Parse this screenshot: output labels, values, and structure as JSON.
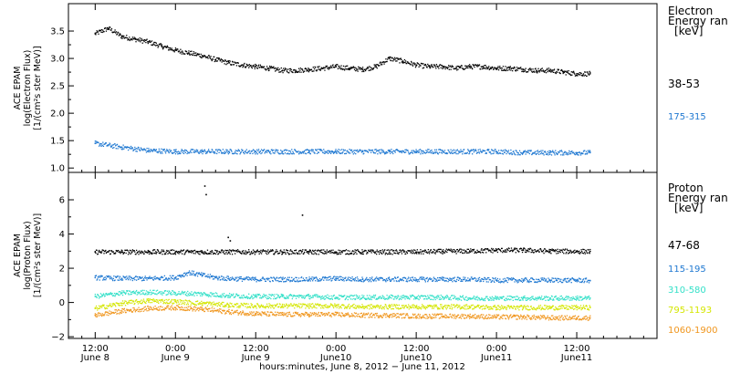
{
  "chart_data": [
    {
      "type": "scatter",
      "panel": "electron",
      "ylabel_lines": [
        "ACE EPAM",
        "log(Electron Flux)",
        "[1/(cm²s ster MeV)]"
      ],
      "ylim": [
        0.92,
        4.0
      ],
      "yticks": [
        "1.0",
        "1.5",
        "2.0",
        "2.5",
        "3.0",
        "3.5"
      ],
      "ytick_values": [
        1.0,
        1.5,
        2.0,
        2.5,
        3.0,
        3.5
      ],
      "legend_title": [
        "Electron",
        "Energy ran",
        "[keV]"
      ],
      "series": [
        {
          "name": "38-53",
          "color": "#000000",
          "hours": [
            0,
            2,
            4,
            6,
            8,
            10,
            12,
            14,
            16,
            18,
            20,
            22,
            24,
            26,
            28,
            30,
            32,
            34,
            36,
            38,
            40,
            42,
            44,
            46,
            48,
            50,
            52,
            54,
            56,
            58,
            60,
            62,
            64,
            66,
            68,
            70,
            72,
            74
          ],
          "values": [
            3.45,
            3.55,
            3.4,
            3.35,
            3.3,
            3.22,
            3.15,
            3.1,
            3.05,
            2.98,
            2.92,
            2.88,
            2.85,
            2.82,
            2.78,
            2.78,
            2.8,
            2.82,
            2.85,
            2.82,
            2.8,
            2.85,
            3.0,
            2.95,
            2.88,
            2.85,
            2.85,
            2.82,
            2.85,
            2.85,
            2.82,
            2.82,
            2.8,
            2.78,
            2.78,
            2.75,
            2.72,
            2.72
          ]
        },
        {
          "name": "175-315",
          "color": "#1f78d1",
          "hours": [
            0,
            4,
            8,
            12,
            16,
            20,
            24,
            28,
            32,
            36,
            40,
            44,
            48,
            52,
            56,
            60,
            64,
            68,
            72,
            74
          ],
          "values": [
            1.45,
            1.38,
            1.32,
            1.3,
            1.3,
            1.3,
            1.3,
            1.3,
            1.3,
            1.3,
            1.3,
            1.3,
            1.3,
            1.3,
            1.3,
            1.3,
            1.28,
            1.28,
            1.28,
            1.28
          ]
        }
      ]
    },
    {
      "type": "scatter",
      "panel": "proton",
      "ylabel_lines": [
        "ACE EPAM",
        "log(Proton Flux)",
        "[1/(cm²s ster MeV)]"
      ],
      "ylim": [
        -2.1,
        7.6
      ],
      "yticks": [
        "−2",
        "0",
        "2",
        "4",
        "6"
      ],
      "ytick_values": [
        -2,
        0,
        2,
        4,
        6
      ],
      "legend_title": [
        "Proton",
        "Energy ran",
        "[keV]"
      ],
      "series": [
        {
          "name": "47-68",
          "color": "#000000",
          "hours": [
            0,
            4,
            8,
            12,
            16,
            20,
            24,
            28,
            32,
            36,
            40,
            44,
            48,
            52,
            56,
            60,
            64,
            68,
            72,
            74
          ],
          "values": [
            2.95,
            2.95,
            2.95,
            2.95,
            2.95,
            2.95,
            2.95,
            2.95,
            2.95,
            2.95,
            2.95,
            2.95,
            2.95,
            2.98,
            3.0,
            3.05,
            3.05,
            3.0,
            2.98,
            2.98
          ]
        },
        {
          "name": "115-195",
          "color": "#1f78d1",
          "hours": [
            0,
            4,
            8,
            12,
            14,
            16,
            18,
            20,
            24,
            28,
            32,
            36,
            40,
            44,
            48,
            52,
            56,
            60,
            64,
            68,
            72,
            74
          ],
          "values": [
            1.45,
            1.4,
            1.4,
            1.45,
            1.75,
            1.6,
            1.45,
            1.4,
            1.35,
            1.35,
            1.35,
            1.4,
            1.35,
            1.35,
            1.35,
            1.35,
            1.35,
            1.3,
            1.3,
            1.3,
            1.3,
            1.28
          ]
        },
        {
          "name": "310-580",
          "color": "#33e0c8",
          "hours": [
            0,
            4,
            8,
            12,
            16,
            20,
            24,
            28,
            32,
            36,
            40,
            44,
            48,
            52,
            56,
            60,
            64,
            68,
            72,
            74
          ],
          "values": [
            0.35,
            0.55,
            0.6,
            0.55,
            0.5,
            0.4,
            0.35,
            0.35,
            0.35,
            0.3,
            0.3,
            0.3,
            0.3,
            0.3,
            0.25,
            0.25,
            0.25,
            0.25,
            0.25,
            0.25
          ]
        },
        {
          "name": "795-1193",
          "color": "#d4e600",
          "hours": [
            0,
            4,
            8,
            12,
            16,
            20,
            24,
            28,
            32,
            36,
            40,
            44,
            48,
            52,
            56,
            60,
            64,
            68,
            72,
            74
          ],
          "values": [
            -0.35,
            -0.05,
            0.1,
            0.05,
            -0.05,
            -0.15,
            -0.2,
            -0.2,
            -0.2,
            -0.2,
            -0.25,
            -0.25,
            -0.25,
            -0.25,
            -0.25,
            -0.3,
            -0.3,
            -0.3,
            -0.3,
            -0.3
          ]
        },
        {
          "name": "1060-1900",
          "color": "#f0961e",
          "hours": [
            0,
            4,
            8,
            12,
            16,
            20,
            24,
            28,
            32,
            36,
            40,
            44,
            48,
            52,
            56,
            60,
            64,
            68,
            72,
            74
          ],
          "values": [
            -0.75,
            -0.5,
            -0.35,
            -0.3,
            -0.4,
            -0.55,
            -0.65,
            -0.7,
            -0.7,
            -0.7,
            -0.75,
            -0.75,
            -0.8,
            -0.8,
            -0.8,
            -0.85,
            -0.85,
            -0.9,
            -0.9,
            -0.9
          ]
        }
      ],
      "spikes": {
        "color": "#000000",
        "hours": [
          16.4,
          16.6,
          19.9,
          20.2,
          31.0
        ],
        "values": [
          6.8,
          6.3,
          3.8,
          3.6,
          5.1
        ]
      }
    }
  ],
  "xaxis": {
    "xlim_hours": [
      -4,
      84
    ],
    "ticks": [
      {
        "hour": 0,
        "time": "12:00",
        "date": "June 8"
      },
      {
        "hour": 12,
        "time": "0:00",
        "date": "June 9"
      },
      {
        "hour": 24,
        "time": "12:00",
        "date": "June 9"
      },
      {
        "hour": 36,
        "time": "0:00",
        "date": "June10"
      },
      {
        "hour": 48,
        "time": "12:00",
        "date": "June10"
      },
      {
        "hour": 60,
        "time": "0:00",
        "date": "June11"
      },
      {
        "hour": 72,
        "time": "12:00",
        "date": "June11"
      }
    ],
    "label": "hours:minutes, June  8, 2012 − June 11, 2012"
  }
}
